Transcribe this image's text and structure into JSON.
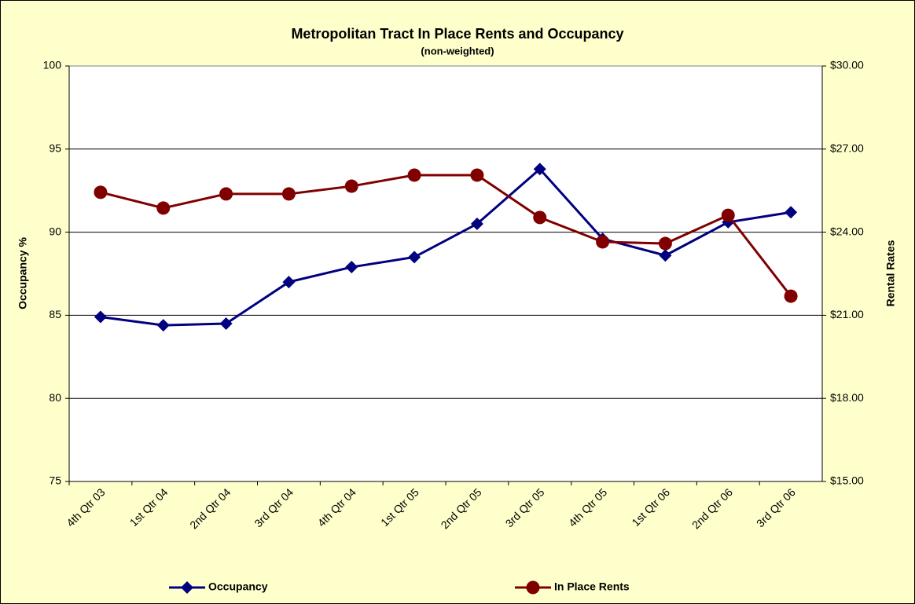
{
  "chart_data": {
    "type": "line",
    "title": "Metropolitan Tract In Place Rents and Occupancy",
    "subtitle": "(non-weighted)",
    "ylabel": "Occupancy %",
    "y2label": "Rental Rates",
    "categories": [
      "4th Qtr 03",
      "1st Qtr 04",
      "2nd Qtr 04",
      "3rd Qtr 04",
      "4th Qtr 04",
      "1st Qtr 05",
      "2nd Qtr 05",
      "3rd Qtr 05",
      "4th Qtr 05",
      "1st Qtr 06",
      "2nd Qtr 06",
      "3rd Qtr 06"
    ],
    "series": [
      {
        "name": "Occupancy",
        "color": "#000080",
        "marker": "diamond",
        "values": [
          84.9,
          84.4,
          84.5,
          87.0,
          87.9,
          88.5,
          90.5,
          93.8,
          89.6,
          88.6,
          90.6,
          91.2
        ]
      },
      {
        "name": "In Place Rents",
        "color": "#800000",
        "marker": "circle",
        "axis": "y2",
        "values": [
          25.44,
          24.87,
          25.38,
          25.38,
          25.66,
          26.06,
          26.06,
          24.53,
          23.65,
          23.59,
          24.61,
          21.69
        ]
      }
    ],
    "ylim": [
      75,
      100
    ],
    "yticks": [
      75,
      80,
      85,
      90,
      95,
      100
    ],
    "y2lim": [
      15,
      30
    ],
    "y2ticks": [
      {
        "value": 15,
        "label": "$15.00"
      },
      {
        "value": 18,
        "label": "$18.00"
      },
      {
        "value": 21,
        "label": "$21.00"
      },
      {
        "value": 24,
        "label": "$24.00"
      },
      {
        "value": 27,
        "label": "$27.00"
      },
      {
        "value": 30,
        "label": "$30.00"
      }
    ],
    "grid": true,
    "legend": "bottom"
  }
}
